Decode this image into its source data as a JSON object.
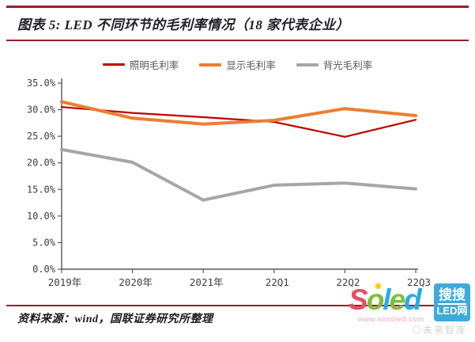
{
  "header": {
    "title": "图表 5: LED 不同环节的毛利率情况（18 家代表企业）"
  },
  "legend": [
    {
      "label": "照明毛利率",
      "color": "#C00000",
      "thickness": 2.5
    },
    {
      "label": "显示毛利率",
      "color": "#ED7D31",
      "thickness": 4
    },
    {
      "label": "背光毛利率",
      "color": "#A6A6A6",
      "thickness": 4
    }
  ],
  "chart_data": {
    "type": "line",
    "categories": [
      "2019年",
      "2020年",
      "2021年",
      "22Q1",
      "22Q2",
      "22Q3"
    ],
    "series": [
      {
        "name": "照明毛利率",
        "color": "#C00000",
        "width": 2.2,
        "values": [
          30.5,
          29.4,
          28.6,
          27.7,
          24.9,
          28.1
        ]
      },
      {
        "name": "显示毛利率",
        "color": "#ED7D31",
        "width": 4,
        "values": [
          31.5,
          28.4,
          27.3,
          28.0,
          30.2,
          28.9
        ]
      },
      {
        "name": "背光毛利率",
        "color": "#A6A6A6",
        "width": 4,
        "values": [
          22.5,
          20.1,
          13.0,
          15.8,
          16.2,
          15.1
        ]
      }
    ],
    "title": "LED 不同环节的毛利率情况（18 家代表企业）",
    "xlabel": "",
    "ylabel": "",
    "ylim": [
      0,
      35
    ],
    "ytick_step": 5,
    "ytick_labels": [
      "0.0%",
      "5.0%",
      "10.0%",
      "15.0%",
      "20.0%",
      "25.0%",
      "30.0%",
      "35.0%"
    ],
    "grid": false,
    "legend_position": "top"
  },
  "footer": {
    "source": "资料来源：wind，国联证券研究所整理"
  },
  "watermark": {
    "logo_letters": [
      {
        "char": "S",
        "color": "#e84f63"
      },
      {
        "char": "o",
        "color": "#7dbe3a"
      },
      {
        "char": "l",
        "color": "#29abe2"
      },
      {
        "char": "e",
        "color": "#7dbe3a"
      },
      {
        "char": "d",
        "color": "#29abe2"
      }
    ],
    "sparkle": "✹",
    "badge_top": "搜搜",
    "badge_bottom": "LED网",
    "badge_color": "#3fa9dc",
    "url": "www.sosoled.com",
    "faint_text": "◎未来智库"
  },
  "colors": {
    "rule": "#9c1b30",
    "axis": "#595959",
    "tick_text": "#3f3f3f"
  }
}
